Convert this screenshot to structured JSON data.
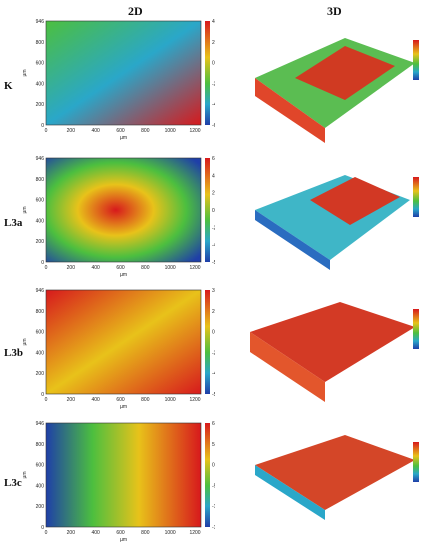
{
  "columns": {
    "left": "2D",
    "right": "3D"
  },
  "samples": [
    {
      "label": "K",
      "cb_ticks": [
        "40",
        "20",
        "0",
        "-20",
        "-40",
        "-64"
      ]
    },
    {
      "label": "L3a",
      "cb_ticks": [
        "60",
        "40",
        "20",
        "0",
        "-20",
        "-40",
        "-55"
      ]
    },
    {
      "label": "L3b",
      "cb_ticks": [
        "37",
        "20",
        "0",
        "-20",
        "-40",
        "-57"
      ]
    },
    {
      "label": "L3c",
      "cb_ticks": [
        "60",
        "50",
        "0",
        "-50",
        "-100",
        "-147"
      ]
    }
  ],
  "axes": {
    "x_label": "µm",
    "y_label": "µm",
    "cb_unit": "nm",
    "x_ticks": [
      "0",
      "200",
      "400",
      "600",
      "800",
      "1000",
      "1200"
    ],
    "y_ticks": [
      "946",
      "800",
      "600",
      "400",
      "200",
      "0"
    ]
  },
  "colors": {
    "high": "#d7191c",
    "mid_high": "#e8c21a",
    "mid": "#4cbf3f",
    "mid_low": "#2aa7c9",
    "low": "#1f3fa8"
  }
}
